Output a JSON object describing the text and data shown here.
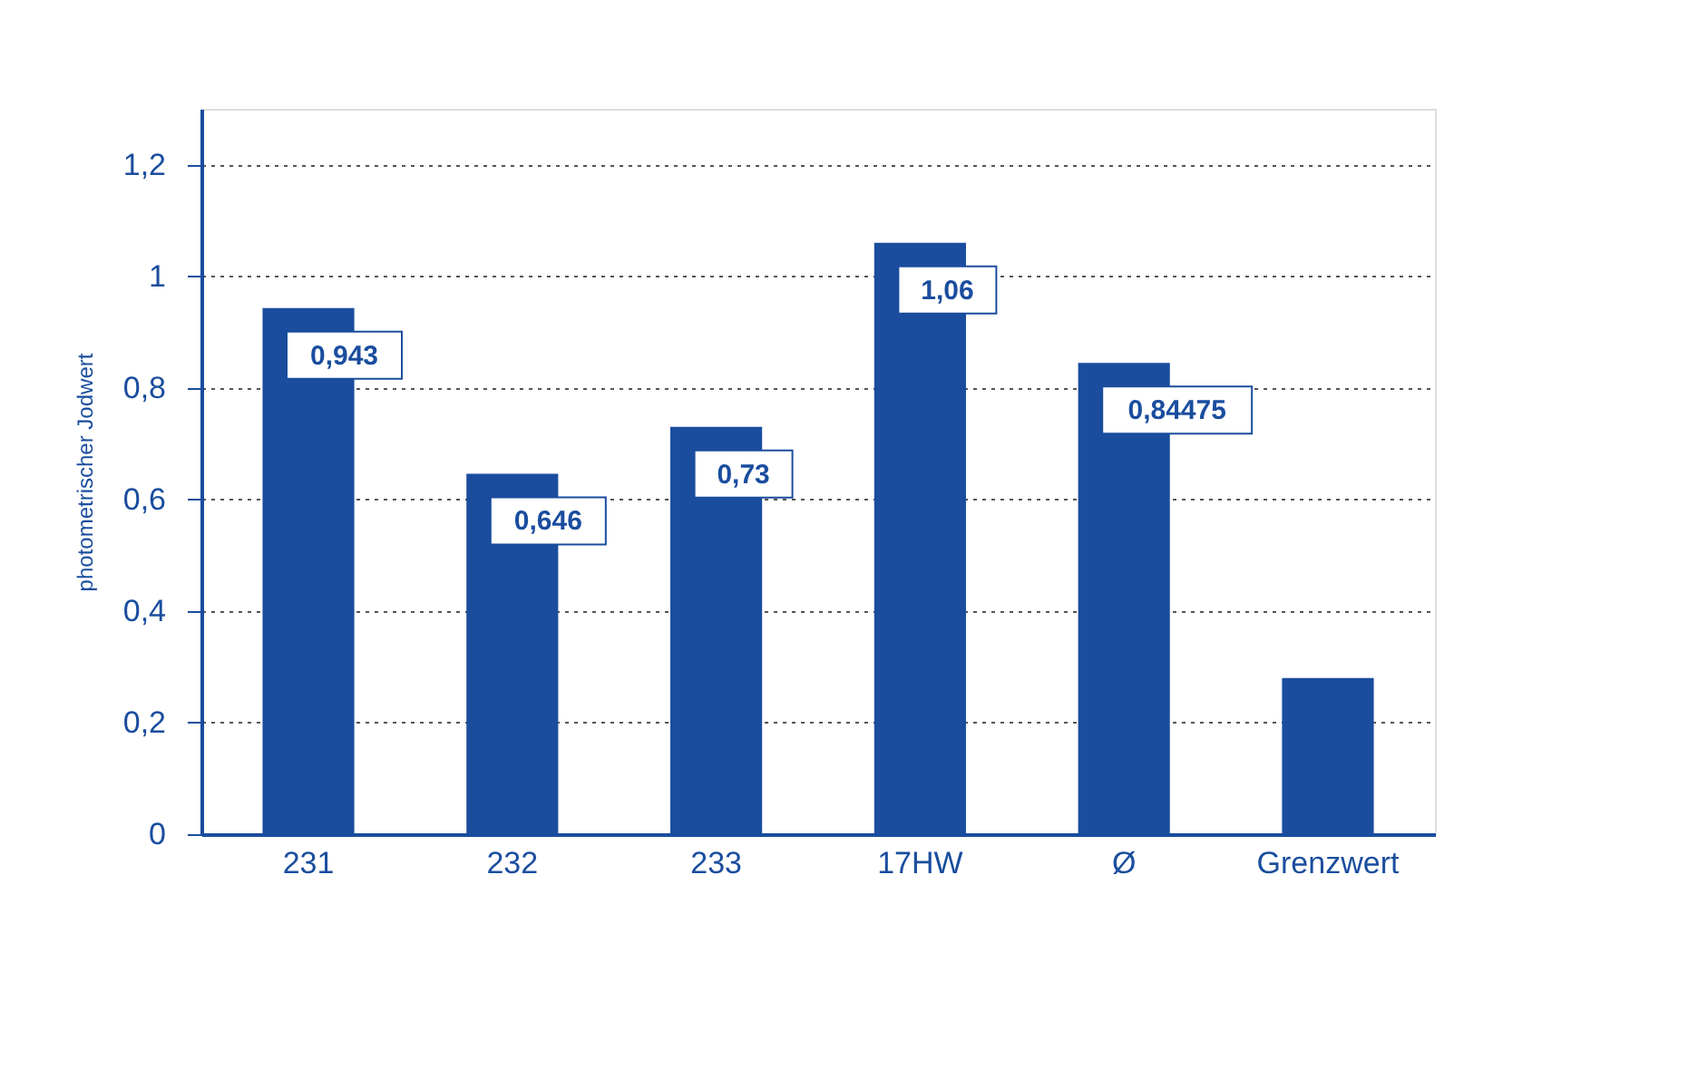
{
  "chart_data": {
    "type": "bar",
    "ylabel": "photometrischer Jodwert",
    "categories": [
      "231",
      "232",
      "233",
      "17HW",
      "Ø",
      "Grenzwert"
    ],
    "values": [
      0.943,
      0.646,
      0.73,
      1.06,
      0.84475,
      0.28
    ],
    "value_labels": [
      "0,943",
      "0,646",
      "0,73",
      "1,06",
      "0,84475",
      null
    ],
    "color": "#1a4d9e",
    "ylim": [
      0,
      1.3
    ],
    "yticks": [
      0,
      {
        "value": 0.2,
        "label": "0,2"
      },
      {
        "value": 0.4,
        "label": "0,4"
      },
      {
        "value": 0.6,
        "label": "0,6"
      },
      {
        "value": 0.8,
        "label": "0,8"
      },
      1,
      {
        "value": 1.2,
        "label": "1,2"
      }
    ],
    "grid": "y"
  }
}
